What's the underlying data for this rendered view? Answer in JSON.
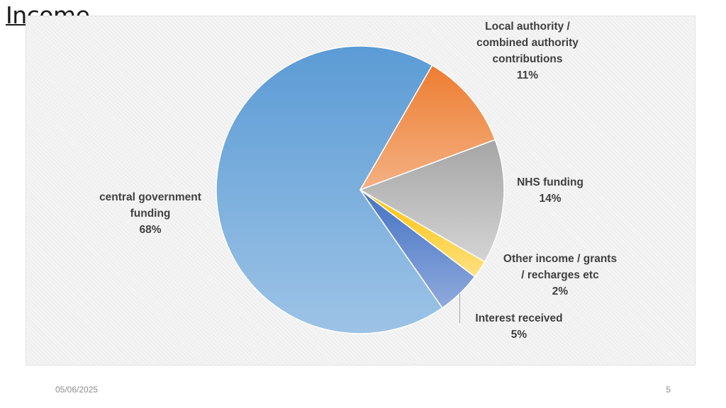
{
  "slide": {
    "title": "Income",
    "date": "05/06/2025",
    "page_number": "5"
  },
  "chart_data": {
    "type": "pie",
    "title": "",
    "slices": [
      {
        "name": "Local authority / combined authority contributions",
        "lines": [
          "Local authority /",
          "combined authority",
          "contributions"
        ],
        "value": 11,
        "label": "11%",
        "color": "#ED7D31",
        "color_light": "#F4B183"
      },
      {
        "name": "NHS funding",
        "lines": [
          "NHS funding"
        ],
        "value": 14,
        "label": "14%",
        "color": "#A5A5A5",
        "color_light": "#D4D4D4"
      },
      {
        "name": "Other income / grants / recharges etc",
        "lines": [
          "Other income / grants",
          "/ recharges etc"
        ],
        "value": 2,
        "label": "2%",
        "color": "#FFC000",
        "color_light": "#FFE285"
      },
      {
        "name": "Interest received",
        "lines": [
          "Interest received"
        ],
        "value": 5,
        "label": "5%",
        "color": "#4472C4",
        "color_light": "#8FAADC"
      },
      {
        "name": "central government funding",
        "lines": [
          "central government",
          "funding"
        ],
        "value": 68,
        "label": "68%",
        "color": "#5B9BD5",
        "color_light": "#9DC3E6"
      }
    ]
  }
}
